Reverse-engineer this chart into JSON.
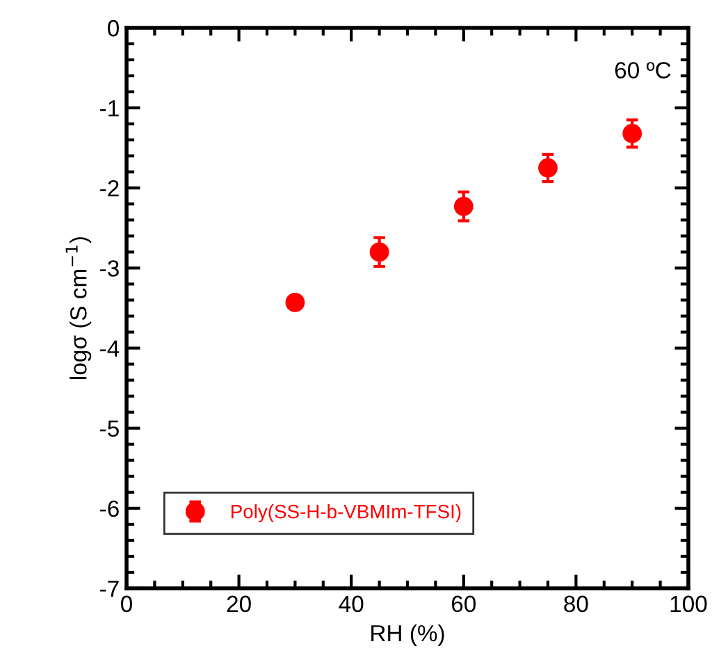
{
  "chart_data": {
    "type": "scatter",
    "xlabel": "RH (%)",
    "ylabel": "logσ (S cm$^{−1}$)",
    "x": [
      30,
      45,
      60,
      75,
      90
    ],
    "series": [
      {
        "name": "Poly(SS-H-b-VBMIm-TFSI)",
        "color": "#ff0000",
        "values": [
          -3.43,
          -2.8,
          -2.23,
          -1.75,
          -1.32
        ],
        "errors": [
          0.07,
          0.18,
          0.18,
          0.17,
          0.17
        ]
      }
    ],
    "xlim": [
      0,
      100
    ],
    "xticks": [
      0,
      20,
      40,
      60,
      80,
      100
    ],
    "ylim": [
      -7,
      0
    ],
    "yticks": [
      -7,
      -6,
      -5,
      -4,
      -3,
      -2,
      -1,
      0
    ],
    "marker": "circle",
    "legend": "bottom left",
    "grid": false,
    "annotations": [
      {
        "text": "60 ºC"
      }
    ]
  }
}
